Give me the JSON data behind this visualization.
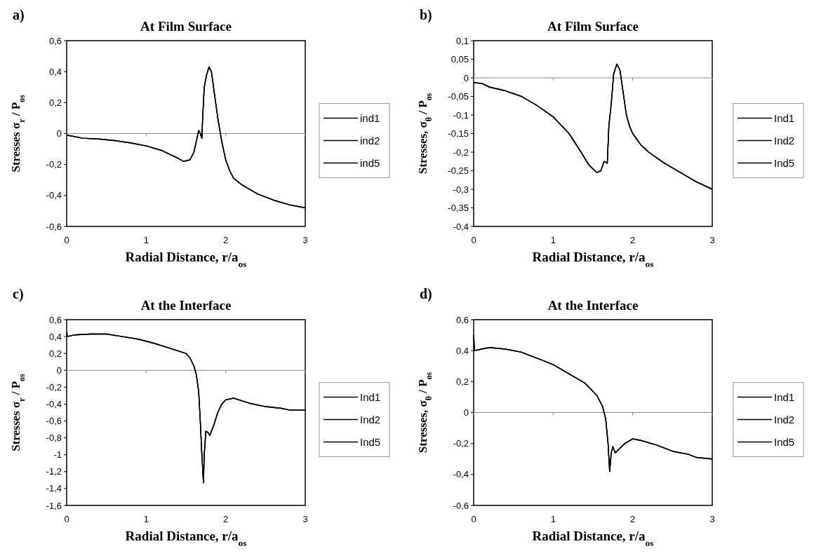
{
  "chart_data": [
    {
      "type": "line",
      "title": "At Film Surface",
      "annotations": [
        "a)"
      ],
      "xlabel": "Radial Distance,  r/a$_{os}$",
      "ylabel": "Stresses  σ$_{r}$ / P$_{os}$",
      "xlim": [
        0,
        3
      ],
      "xticks": [
        0,
        1,
        2,
        3
      ],
      "ylim": [
        -0.6,
        0.6
      ],
      "yticks": [
        {
          "value": -0.6,
          "label": "-0,6"
        },
        {
          "value": -0.4,
          "label": "-0,4"
        },
        {
          "value": -0.2,
          "label": "-0,2"
        },
        {
          "value": 0,
          "label": "0"
        },
        {
          "value": 0.2,
          "label": "0,2"
        },
        {
          "value": 0.4,
          "label": "0,4"
        },
        {
          "value": 0.6,
          "label": "0,6"
        }
      ],
      "grid": false,
      "legend": "right",
      "line_style": "solid",
      "ref_lines": [
        {
          "axis": "y",
          "value": 0,
          "color": "#888888"
        }
      ],
      "x": [
        0,
        0.1,
        0.2,
        0.4,
        0.6,
        0.8,
        1.0,
        1.2,
        1.4,
        1.47,
        1.55,
        1.6,
        1.63,
        1.66,
        1.68,
        1.7,
        1.71,
        1.73,
        1.76,
        1.79,
        1.82,
        1.86,
        1.9,
        1.95,
        2.0,
        2.05,
        2.1,
        2.2,
        2.4,
        2.6,
        2.8,
        3.0
      ],
      "series": [
        {
          "name": "ind1",
          "color": "#000000",
          "values": [
            -0.01,
            -0.02,
            -0.03,
            -0.035,
            -0.045,
            -0.06,
            -0.08,
            -0.11,
            -0.16,
            -0.18,
            -0.17,
            -0.12,
            -0.05,
            0.02,
            0.0,
            -0.03,
            0.1,
            0.3,
            0.38,
            0.43,
            0.4,
            0.25,
            0.1,
            -0.05,
            -0.17,
            -0.24,
            -0.29,
            -0.33,
            -0.39,
            -0.43,
            -0.46,
            -0.48
          ]
        },
        {
          "name": "ind2",
          "color": "#000000",
          "values": [
            -0.01,
            -0.02,
            -0.03,
            -0.035,
            -0.045,
            -0.06,
            -0.08,
            -0.11,
            -0.16,
            -0.18,
            -0.17,
            -0.12,
            -0.05,
            0.02,
            0.0,
            -0.03,
            0.1,
            0.3,
            0.38,
            0.43,
            0.4,
            0.25,
            0.1,
            -0.05,
            -0.17,
            -0.24,
            -0.29,
            -0.33,
            -0.39,
            -0.43,
            -0.46,
            -0.48
          ]
        },
        {
          "name": "ind5",
          "color": "#000000",
          "values": [
            -0.01,
            -0.02,
            -0.03,
            -0.035,
            -0.045,
            -0.06,
            -0.08,
            -0.11,
            -0.16,
            -0.18,
            -0.17,
            -0.12,
            -0.05,
            0.02,
            0.0,
            -0.03,
            0.1,
            0.3,
            0.38,
            0.43,
            0.4,
            0.25,
            0.1,
            -0.05,
            -0.17,
            -0.24,
            -0.29,
            -0.33,
            -0.39,
            -0.43,
            -0.46,
            -0.48
          ]
        }
      ]
    },
    {
      "type": "line",
      "title": "At Film Surface",
      "annotations": [
        "b)"
      ],
      "xlabel": "Radial Distance,  r/a$_{os}$",
      "ylabel": "Stresses,  σ$_{θ}$ / P$_{os}$",
      "xlim": [
        0,
        3
      ],
      "xticks": [
        0,
        1,
        2,
        3
      ],
      "ylim": [
        -0.4,
        0.1
      ],
      "yticks": [
        {
          "value": -0.4,
          "label": "-0,4"
        },
        {
          "value": -0.35,
          "label": "-0,35"
        },
        {
          "value": -0.3,
          "label": "-0,3"
        },
        {
          "value": -0.25,
          "label": "-0,25"
        },
        {
          "value": -0.2,
          "label": "-0,2"
        },
        {
          "value": -0.15,
          "label": "-0,15"
        },
        {
          "value": -0.1,
          "label": "-0,1"
        },
        {
          "value": -0.05,
          "label": "-0,05"
        },
        {
          "value": 0,
          "label": "0"
        },
        {
          "value": 0.05,
          "label": "0,05"
        },
        {
          "value": 0.1,
          "label": "0,1"
        }
      ],
      "grid": false,
      "legend": "right",
      "line_style": "solid",
      "ref_lines": [
        {
          "axis": "y",
          "value": 0,
          "color": "#888888"
        }
      ],
      "x": [
        0,
        0.1,
        0.2,
        0.4,
        0.6,
        0.8,
        1.0,
        1.2,
        1.35,
        1.45,
        1.55,
        1.6,
        1.64,
        1.68,
        1.7,
        1.73,
        1.76,
        1.8,
        1.84,
        1.88,
        1.92,
        1.96,
        2.0,
        2.1,
        2.2,
        2.4,
        2.6,
        2.8,
        3.0
      ],
      "series": [
        {
          "name": "Ind1",
          "color": "#000000",
          "values": [
            -0.013,
            -0.015,
            -0.025,
            -0.035,
            -0.05,
            -0.075,
            -0.105,
            -0.15,
            -0.2,
            -0.235,
            -0.255,
            -0.25,
            -0.225,
            -0.23,
            -0.13,
            -0.07,
            0.01,
            0.037,
            0.02,
            -0.04,
            -0.1,
            -0.13,
            -0.15,
            -0.18,
            -0.2,
            -0.23,
            -0.255,
            -0.28,
            -0.3
          ]
        },
        {
          "name": "Ind2",
          "color": "#000000",
          "values": [
            -0.013,
            -0.015,
            -0.025,
            -0.035,
            -0.05,
            -0.075,
            -0.105,
            -0.15,
            -0.2,
            -0.235,
            -0.255,
            -0.25,
            -0.225,
            -0.23,
            -0.13,
            -0.07,
            0.01,
            0.037,
            0.02,
            -0.04,
            -0.1,
            -0.13,
            -0.15,
            -0.18,
            -0.2,
            -0.23,
            -0.255,
            -0.28,
            -0.3
          ]
        },
        {
          "name": "Ind5",
          "color": "#000000",
          "values": [
            -0.013,
            -0.015,
            -0.025,
            -0.035,
            -0.05,
            -0.075,
            -0.105,
            -0.15,
            -0.2,
            -0.235,
            -0.255,
            -0.25,
            -0.225,
            -0.23,
            -0.13,
            -0.07,
            0.01,
            0.037,
            0.02,
            -0.04,
            -0.1,
            -0.13,
            -0.15,
            -0.18,
            -0.2,
            -0.23,
            -0.255,
            -0.28,
            -0.3
          ]
        }
      ]
    },
    {
      "type": "line",
      "title": "At the Interface",
      "annotations": [
        "c)"
      ],
      "xlabel": "Radial Distance,  r/a$_{os}$",
      "ylabel": "Stresses  σ$_{r}$ / P$_{os}$",
      "xlim": [
        0,
        3
      ],
      "xticks": [
        0,
        1,
        2,
        3
      ],
      "ylim": [
        -1.6,
        0.6
      ],
      "yticks": [
        {
          "value": -1.6,
          "label": "-1,6"
        },
        {
          "value": -1.4,
          "label": "-1,4"
        },
        {
          "value": -1.2,
          "label": "-1,2"
        },
        {
          "value": -1,
          "label": "-1"
        },
        {
          "value": -0.8,
          "label": "-0,8"
        },
        {
          "value": -0.6,
          "label": "-0,6"
        },
        {
          "value": -0.4,
          "label": "-0,4"
        },
        {
          "value": -0.2,
          "label": "-0,2"
        },
        {
          "value": 0,
          "label": "0"
        },
        {
          "value": 0.2,
          "label": "0,2"
        },
        {
          "value": 0.4,
          "label": "0,4"
        },
        {
          "value": 0.6,
          "label": "0,6"
        }
      ],
      "grid": false,
      "legend": "right",
      "line_style": "solid",
      "ref_lines": [
        {
          "axis": "y",
          "value": 0,
          "color": "#888888"
        }
      ],
      "x": [
        0,
        0.01,
        0.1,
        0.3,
        0.5,
        0.7,
        0.9,
        1.1,
        1.3,
        1.5,
        1.55,
        1.6,
        1.63,
        1.66,
        1.68,
        1.7,
        1.72,
        1.73,
        1.75,
        1.78,
        1.8,
        1.85,
        1.9,
        1.95,
        2.0,
        2.1,
        2.2,
        2.3,
        2.5,
        2.7,
        2.8,
        3.0
      ],
      "series": [
        {
          "name": "Ind1",
          "color": "#000000",
          "values": [
            0.45,
            0.4,
            0.42,
            0.43,
            0.43,
            0.4,
            0.37,
            0.32,
            0.26,
            0.2,
            0.15,
            0.05,
            -0.05,
            -0.25,
            -0.6,
            -1.0,
            -1.33,
            -1.0,
            -0.72,
            -0.74,
            -0.77,
            -0.65,
            -0.5,
            -0.4,
            -0.35,
            -0.33,
            -0.36,
            -0.39,
            -0.43,
            -0.45,
            -0.47,
            -0.47
          ]
        },
        {
          "name": "Ind2",
          "color": "#000000",
          "values": [
            0.45,
            0.4,
            0.42,
            0.43,
            0.43,
            0.4,
            0.37,
            0.32,
            0.26,
            0.2,
            0.15,
            0.05,
            -0.05,
            -0.25,
            -0.6,
            -1.0,
            -1.33,
            -1.0,
            -0.72,
            -0.74,
            -0.77,
            -0.65,
            -0.5,
            -0.4,
            -0.35,
            -0.33,
            -0.36,
            -0.39,
            -0.43,
            -0.45,
            -0.47,
            -0.47
          ]
        },
        {
          "name": "Ind5",
          "color": "#000000",
          "values": [
            0.45,
            0.4,
            0.42,
            0.43,
            0.43,
            0.4,
            0.37,
            0.32,
            0.26,
            0.2,
            0.15,
            0.05,
            -0.05,
            -0.25,
            -0.6,
            -1.0,
            -1.33,
            -1.0,
            -0.72,
            -0.74,
            -0.77,
            -0.65,
            -0.5,
            -0.4,
            -0.35,
            -0.33,
            -0.36,
            -0.39,
            -0.43,
            -0.45,
            -0.47,
            -0.47
          ]
        }
      ]
    },
    {
      "type": "line",
      "title": "At the Interface",
      "annotations": [
        "d)"
      ],
      "xlabel": "Radial Distance,  r/a$_{os}$",
      "ylabel": "Stresses,  σ$_{θ}$ / P$_{os}$",
      "xlim": [
        0,
        3
      ],
      "xticks": [
        0,
        1,
        2,
        3
      ],
      "ylim": [
        -0.6,
        0.6
      ],
      "yticks": [
        {
          "value": -0.6,
          "label": "-0,6"
        },
        {
          "value": -0.4,
          "label": "-0,4"
        },
        {
          "value": -0.2,
          "label": "-0,2"
        },
        {
          "value": 0,
          "label": "0"
        },
        {
          "value": 0.2,
          "label": "0,2"
        },
        {
          "value": 0.4,
          "label": "0,4"
        },
        {
          "value": 0.6,
          "label": "0,6"
        }
      ],
      "grid": false,
      "legend": "right",
      "line_style": "solid",
      "ref_lines": [
        {
          "axis": "y",
          "value": 0,
          "color": "#888888"
        }
      ],
      "x": [
        0,
        0.01,
        0.1,
        0.2,
        0.4,
        0.6,
        0.8,
        1.0,
        1.2,
        1.4,
        1.55,
        1.62,
        1.66,
        1.69,
        1.71,
        1.73,
        1.75,
        1.78,
        1.82,
        1.9,
        2.0,
        2.1,
        2.3,
        2.5,
        2.7,
        2.8,
        3.0
      ],
      "series": [
        {
          "name": "Ind1",
          "color": "#000000",
          "values": [
            0.5,
            0.4,
            0.41,
            0.42,
            0.41,
            0.39,
            0.35,
            0.31,
            0.25,
            0.19,
            0.11,
            0.04,
            -0.04,
            -0.2,
            -0.38,
            -0.26,
            -0.22,
            -0.26,
            -0.24,
            -0.2,
            -0.17,
            -0.18,
            -0.21,
            -0.25,
            -0.27,
            -0.29,
            -0.3
          ]
        },
        {
          "name": "Ind2",
          "color": "#000000",
          "values": [
            0.5,
            0.4,
            0.41,
            0.42,
            0.41,
            0.39,
            0.35,
            0.31,
            0.25,
            0.19,
            0.11,
            0.04,
            -0.04,
            -0.2,
            -0.38,
            -0.26,
            -0.22,
            -0.26,
            -0.24,
            -0.2,
            -0.17,
            -0.18,
            -0.21,
            -0.25,
            -0.27,
            -0.29,
            -0.3
          ]
        },
        {
          "name": "Ind5",
          "color": "#000000",
          "values": [
            0.5,
            0.4,
            0.41,
            0.42,
            0.41,
            0.39,
            0.35,
            0.31,
            0.25,
            0.19,
            0.11,
            0.04,
            -0.04,
            -0.2,
            -0.38,
            -0.26,
            -0.22,
            -0.26,
            -0.24,
            -0.2,
            -0.17,
            -0.18,
            -0.21,
            -0.25,
            -0.27,
            -0.29,
            -0.3
          ]
        }
      ]
    }
  ]
}
